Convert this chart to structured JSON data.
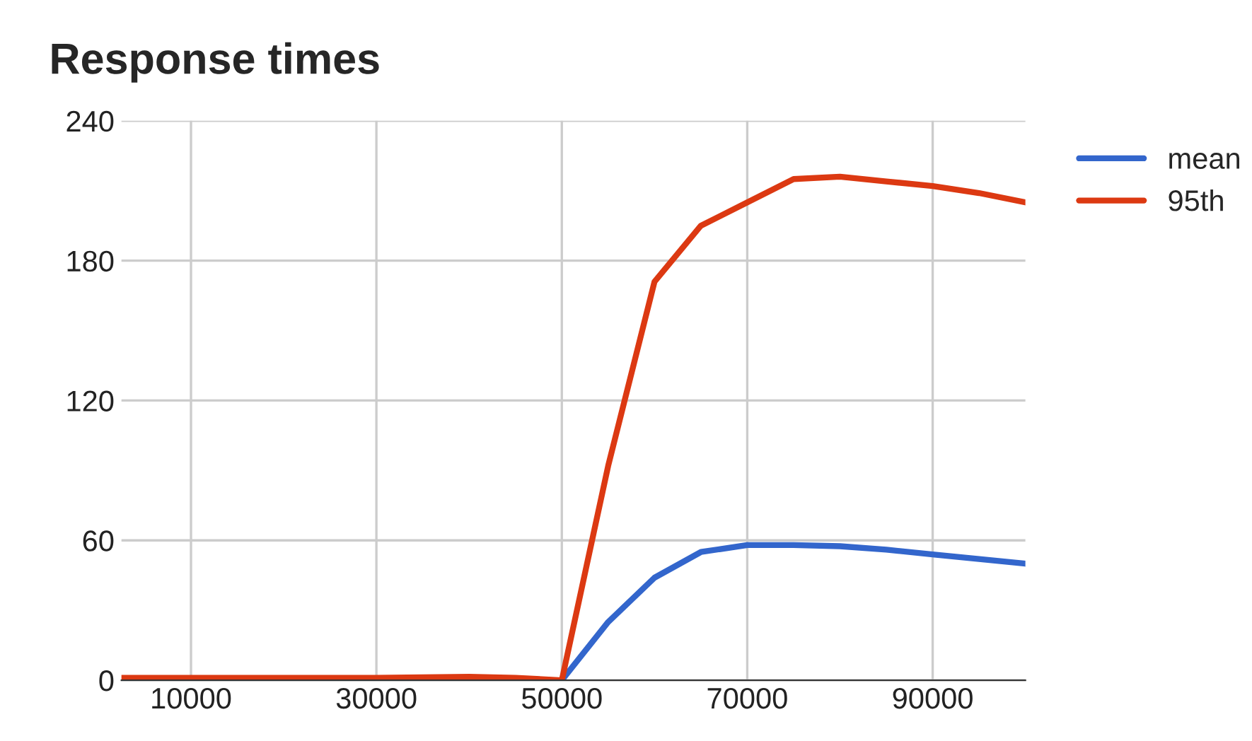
{
  "chart_data": {
    "type": "line",
    "title": "Response times",
    "x": [
      2500,
      10000,
      20000,
      30000,
      40000,
      45000,
      50000,
      55000,
      60000,
      65000,
      70000,
      75000,
      80000,
      85000,
      90000,
      95000,
      100000
    ],
    "series": [
      {
        "name": "mean",
        "color": "#3366cc",
        "values": [
          null,
          null,
          null,
          null,
          null,
          0,
          0,
          25,
          44,
          55,
          58,
          58,
          57.5,
          56,
          54,
          52,
          50
        ]
      },
      {
        "name": "95th",
        "color": "#dc3912",
        "values": [
          1,
          1,
          1,
          1,
          1.5,
          1,
          0,
          92,
          171,
          195,
          205,
          215,
          216,
          214,
          212,
          209,
          205
        ]
      }
    ],
    "xlim": [
      2500,
      100000
    ],
    "xticks": [
      10000,
      30000,
      50000,
      70000,
      90000
    ],
    "ylim": [
      0,
      240
    ],
    "yticks": [
      0,
      60,
      120,
      180,
      240
    ],
    "grid": true,
    "legend": "top right",
    "marker": "none",
    "line_style": "solid"
  }
}
